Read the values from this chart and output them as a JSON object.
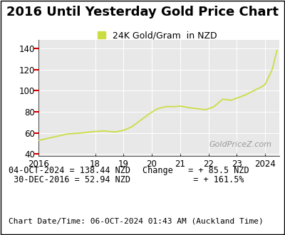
{
  "title": "2016 Until Yesterday Gold Price Chart",
  "legend_label": "24K Gold/Gram  in NZD",
  "line_color": "#ccdd44",
  "watermark": "GoldPriceZ.com",
  "xlim": [
    2016.0,
    2024.5
  ],
  "ylim": [
    38,
    148
  ],
  "yticks": [
    40,
    60,
    80,
    100,
    120,
    140
  ],
  "xtick_labels": [
    "2016",
    "18",
    "19",
    "20",
    "21",
    "22",
    "23",
    "2024"
  ],
  "xtick_positions": [
    2016,
    2018,
    2019,
    2020,
    2021,
    2022,
    2023,
    2024
  ],
  "x_data": [
    2016.0,
    2016.5,
    2017.0,
    2017.5,
    2018.0,
    2018.3,
    2018.7,
    2019.0,
    2019.3,
    2019.6,
    2019.9,
    2020.2,
    2020.5,
    2020.8,
    2021.0,
    2021.3,
    2021.6,
    2021.9,
    2022.2,
    2022.5,
    2022.8,
    2023.0,
    2023.3,
    2023.6,
    2023.9,
    2024.0,
    2024.25,
    2024.42
  ],
  "y_data": [
    53.0,
    56.0,
    59.0,
    60.0,
    61.5,
    62.0,
    61.0,
    62.5,
    66.0,
    72.0,
    78.0,
    83.0,
    85.0,
    85.0,
    85.5,
    84.0,
    83.0,
    82.0,
    85.0,
    92.0,
    91.0,
    93.0,
    96.0,
    100.0,
    104.0,
    106.0,
    120.0,
    138.44
  ],
  "info_line1": "04-OCT-2024 = 138.44 NZD",
  "info_line2": " 30-DEC-2016 = 52.94 NZD",
  "change_label": "Change",
  "change_val1": "= + 85.5 NZD",
  "change_val2": "= + 161.5%",
  "footer": "Chart Date/Time: 06-OCT-2024 01:43 AM (Auckland Time)",
  "bg_color": "#ffffff",
  "plot_bg_color": "#e8e8e8",
  "grid_color": "#ffffff",
  "border_color": "#000000",
  "red_tick_color": "#cc0000",
  "info_font_color": "#000000",
  "watermark_color": "#999999",
  "title_fontsize": 13,
  "legend_fontsize": 9,
  "tick_fontsize": 8.5,
  "info_fontsize": 8.5,
  "footer_fontsize": 8
}
